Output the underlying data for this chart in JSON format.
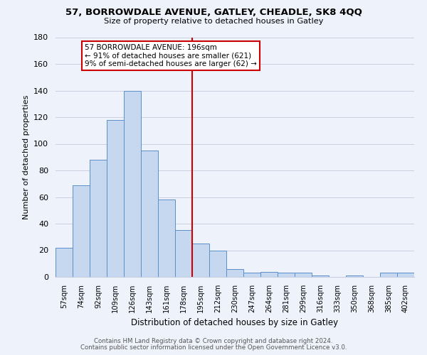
{
  "title": "57, BORROWDALE AVENUE, GATLEY, CHEADLE, SK8 4QQ",
  "subtitle": "Size of property relative to detached houses in Gatley",
  "xlabel": "Distribution of detached houses by size in Gatley",
  "ylabel": "Number of detached properties",
  "bar_labels": [
    "57sqm",
    "74sqm",
    "92sqm",
    "109sqm",
    "126sqm",
    "143sqm",
    "161sqm",
    "178sqm",
    "195sqm",
    "212sqm",
    "230sqm",
    "247sqm",
    "264sqm",
    "281sqm",
    "299sqm",
    "316sqm",
    "333sqm",
    "350sqm",
    "368sqm",
    "385sqm",
    "402sqm"
  ],
  "bar_heights": [
    22,
    69,
    88,
    118,
    140,
    95,
    58,
    35,
    25,
    20,
    6,
    3,
    4,
    3,
    3,
    1,
    0,
    1,
    0,
    3,
    3
  ],
  "bar_color": "#c5d8f0",
  "bar_edge_color": "#5b8fc9",
  "vline_color": "#cc0000",
  "ylim": [
    0,
    180
  ],
  "yticks": [
    0,
    20,
    40,
    60,
    80,
    100,
    120,
    140,
    160,
    180
  ],
  "annotation_text": "57 BORROWDALE AVENUE: 196sqm\n← 91% of detached houses are smaller (621)\n9% of semi-detached houses are larger (62) →",
  "annotation_box_color": "#ffffff",
  "annotation_box_edge": "#cc0000",
  "footer1": "Contains HM Land Registry data © Crown copyright and database right 2024.",
  "footer2": "Contains public sector information licensed under the Open Government Licence v3.0.",
  "bg_color": "#eef2fb",
  "plot_bg_color": "#eef2fb"
}
